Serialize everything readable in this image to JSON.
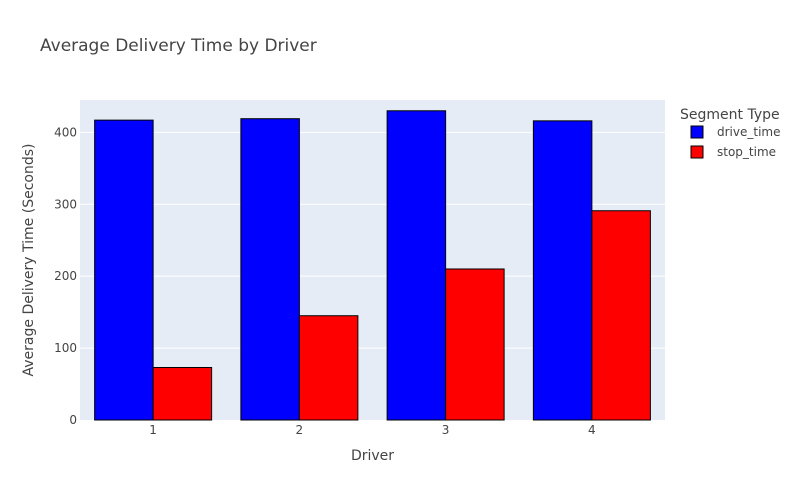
{
  "chart_data": {
    "type": "bar",
    "title": "Average Delivery Time by Driver",
    "xlabel": "Driver",
    "ylabel": "Average Delivery Time (Seconds)",
    "categories": [
      "1",
      "2",
      "3",
      "4"
    ],
    "ylim": [
      0,
      445
    ],
    "yticks": [
      0,
      100,
      200,
      300,
      400
    ],
    "grid": true,
    "barmode": "group",
    "legend": {
      "title": "Segment Type",
      "position": "top-right"
    },
    "series": [
      {
        "name": "drive_time",
        "color": "#0000ff",
        "values": [
          417,
          419,
          430,
          416
        ]
      },
      {
        "name": "stop_time",
        "color": "#ff0000",
        "values": [
          73,
          145,
          210,
          291
        ]
      }
    ]
  },
  "style": {
    "plot_bg": "#e5ecf6",
    "grid_color": "#ffffff",
    "text_color": "#444444",
    "title_color": "#444444",
    "bar_outline": "#000000"
  }
}
